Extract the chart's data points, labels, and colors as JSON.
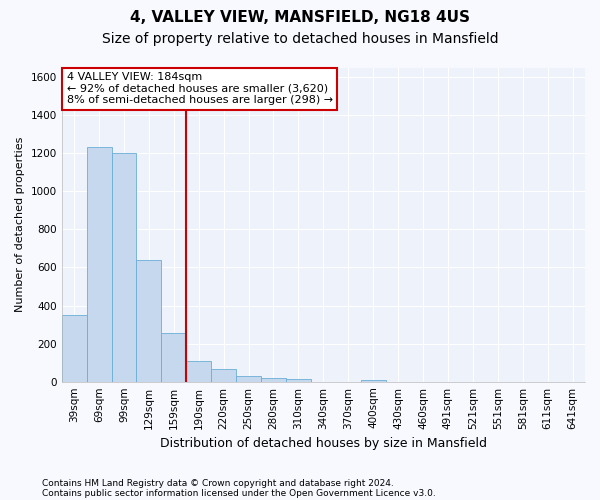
{
  "title": "4, VALLEY VIEW, MANSFIELD, NG18 4US",
  "subtitle": "Size of property relative to detached houses in Mansfield",
  "xlabel": "Distribution of detached houses by size in Mansfield",
  "ylabel": "Number of detached properties",
  "categories": [
    "39sqm",
    "69sqm",
    "99sqm",
    "129sqm",
    "159sqm",
    "190sqm",
    "220sqm",
    "250sqm",
    "280sqm",
    "310sqm",
    "340sqm",
    "370sqm",
    "400sqm",
    "430sqm",
    "460sqm",
    "491sqm",
    "521sqm",
    "551sqm",
    "581sqm",
    "611sqm",
    "641sqm"
  ],
  "values": [
    350,
    1230,
    1200,
    640,
    255,
    110,
    65,
    30,
    20,
    15,
    0,
    0,
    10,
    0,
    0,
    0,
    0,
    0,
    0,
    0,
    0
  ],
  "bar_color": "#c5d8ee",
  "bar_edge_color": "#6baed6",
  "annotation_line1": "4 VALLEY VIEW: 184sqm",
  "annotation_line2": "← 92% of detached houses are smaller (3,620)",
  "annotation_line3": "8% of semi-detached houses are larger (298) →",
  "annotation_box_facecolor": "#ffffff",
  "annotation_box_edgecolor": "#cc0000",
  "vline_color": "#cc0000",
  "vline_position": 4.5,
  "ylim": [
    0,
    1650
  ],
  "yticks": [
    0,
    200,
    400,
    600,
    800,
    1000,
    1200,
    1400,
    1600
  ],
  "footnote1": "Contains HM Land Registry data © Crown copyright and database right 2024.",
  "footnote2": "Contains public sector information licensed under the Open Government Licence v3.0.",
  "background_color": "#f7f9ff",
  "plot_bg_color": "#eef2fb",
  "grid_color": "#ffffff",
  "title_fontsize": 11,
  "subtitle_fontsize": 10,
  "ylabel_fontsize": 8,
  "xlabel_fontsize": 9,
  "tick_fontsize": 7.5,
  "annot_fontsize": 8,
  "footnote_fontsize": 6.5
}
